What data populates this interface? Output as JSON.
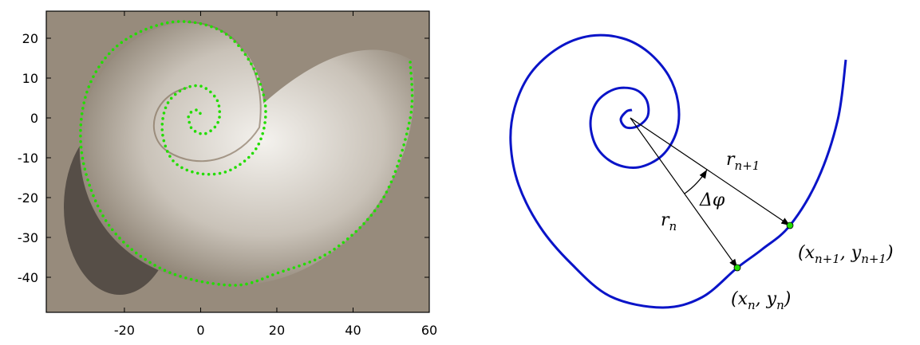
{
  "chart_data": {
    "type": "line",
    "line_style": "dotted",
    "color": "#22dd00",
    "x": [
      55,
      55,
      48,
      35,
      20,
      8,
      -10,
      -24,
      -31,
      -30,
      -22,
      -8,
      5,
      13,
      17,
      15,
      8,
      0,
      -7,
      -10,
      -9,
      -5,
      0,
      4,
      5,
      4,
      1,
      -2,
      -3,
      -3,
      -1,
      0
    ],
    "values": [
      14,
      0,
      -20,
      -33,
      -39,
      -42,
      -38,
      -27,
      -10,
      6,
      18,
      24,
      22,
      14,
      3,
      -7,
      -13,
      -14,
      -11,
      -4,
      3,
      7,
      8,
      5,
      1,
      -2,
      -4,
      -3,
      -1,
      1,
      2,
      1
    ],
    "xlim": [
      -40.5,
      60
    ],
    "ylim": [
      -48.8,
      26.8
    ],
    "xticks": [
      -20,
      0,
      20,
      40,
      60
    ],
    "yticks": [
      20,
      10,
      0,
      -10,
      -20,
      -30,
      -40
    ]
  },
  "diagram": {
    "labels": [
      [
        {
          "t": "r"
        },
        {
          "s": "n+1"
        }
      ],
      [
        {
          "t": "Δφ"
        }
      ],
      [
        {
          "t": "r"
        },
        {
          "s": "n"
        }
      ],
      [
        {
          "t": "(x"
        },
        {
          "s": "n"
        },
        {
          "t": ", y"
        },
        {
          "s": "n"
        },
        {
          "t": ")"
        }
      ],
      [
        {
          "t": "(x"
        },
        {
          "s": "n+1"
        },
        {
          "t": ", y"
        },
        {
          "s": "n+1"
        },
        {
          "t": ")"
        }
      ]
    ]
  }
}
